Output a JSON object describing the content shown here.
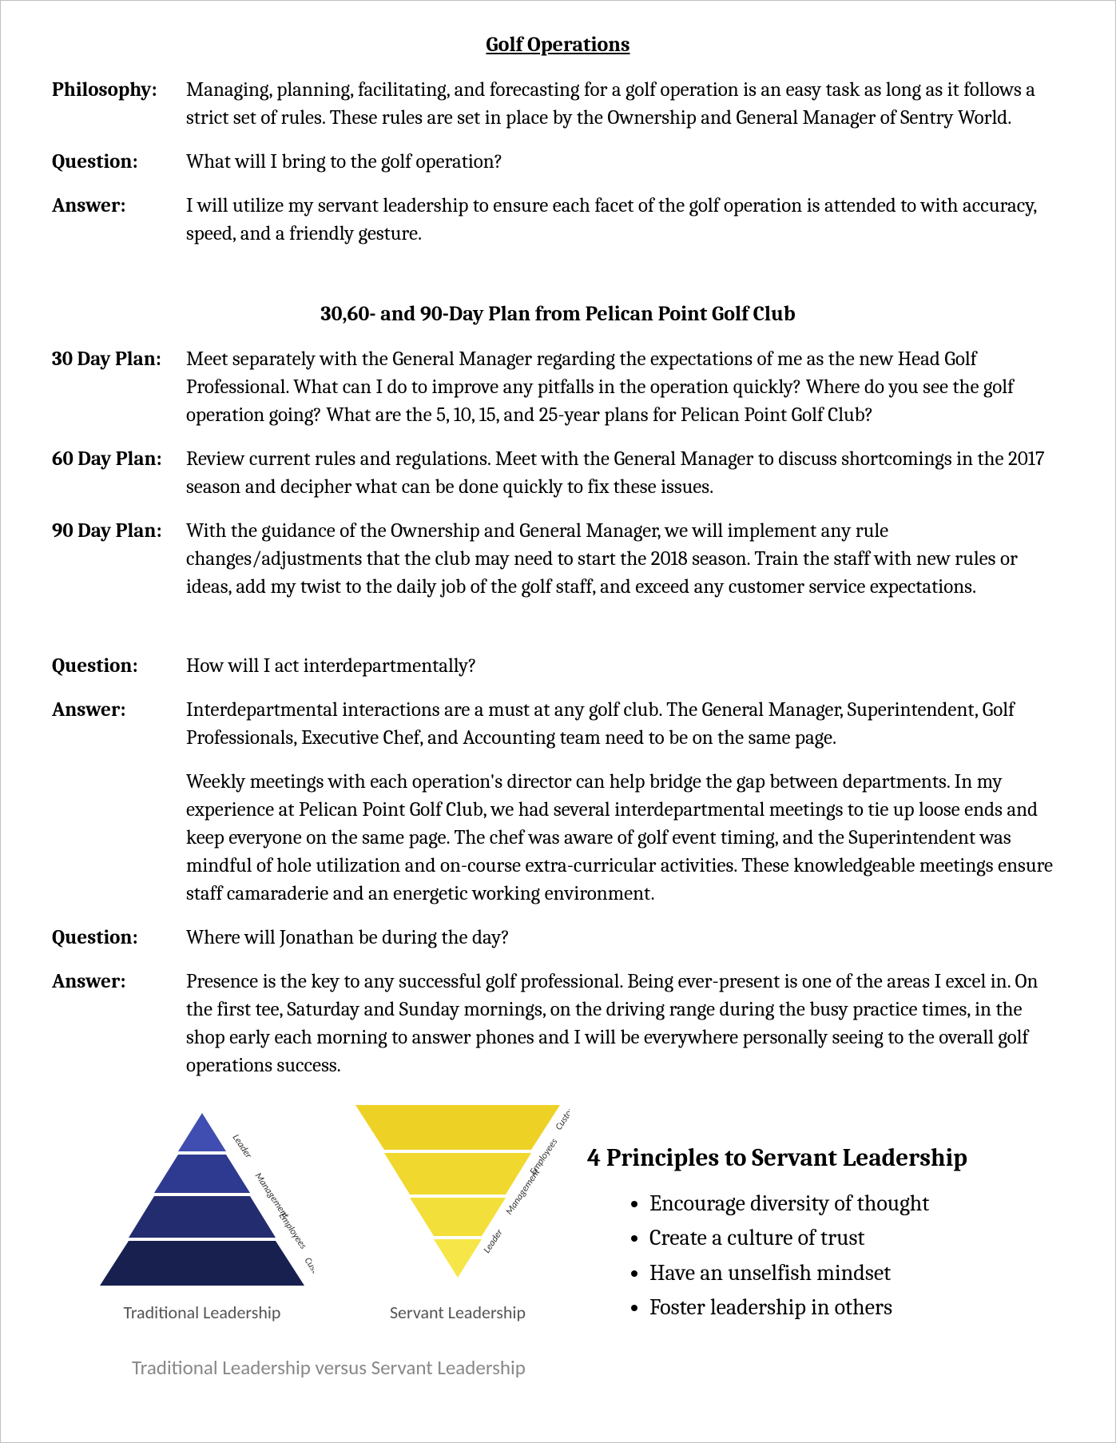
{
  "title": "Golf Operations",
  "rows_top": [
    {
      "label": "Philosophy:",
      "text": "Managing, planning, facilitating, and forecasting for a golf operation is an easy task as long as it follows a strict set of rules. These rules are set in place by the Ownership and General Manager of Sentry World."
    },
    {
      "label": "Question:",
      "text": "What will I bring to the golf operation?"
    },
    {
      "label": "Answer:",
      "text": "I will utilize my servant leadership to ensure each facet of the golf operation is attended to with accuracy, speed, and a friendly gesture."
    }
  ],
  "subheading": "30,60- and 90-Day Plan from Pelican Point Golf Club",
  "plan_rows": [
    {
      "label": "30 Day Plan:",
      "text": "Meet separately with the General Manager regarding the expectations of me as the new Head Golf Professional. What can I do to improve any pitfalls in the operation quickly? Where do you see the golf operation going? What are the 5, 10, 15, and 25-year plans for Pelican Point Golf Club?"
    },
    {
      "label": "60 Day Plan:",
      "text": "Review current rules and regulations.  Meet with the General Manager to discuss shortcomings in the 2017 season and decipher what can be done quickly to fix these issues."
    },
    {
      "label": "90 Day Plan:",
      "text": "With the guidance of the Ownership and General Manager, we will implement any rule changes/adjustments that the club may need to start the 2018 season. Train the staff with new rules or ideas, add my twist to the daily job of the golf staff, and exceed any customer service expectations."
    }
  ],
  "rows_bottom": [
    {
      "label": "Question:",
      "text": "How will I act interdepartmentally?"
    },
    {
      "label": "Answer:",
      "text": "Interdepartmental interactions are a must at any golf club. The General Manager, Superintendent, Golf Professionals, Executive Chef, and Accounting team need to be on the same page."
    },
    {
      "label": "",
      "text": "Weekly meetings with each operation's director can help bridge the gap between departments. In my experience at Pelican Point Golf Club, we had several interdepartmental meetings to tie up loose ends and keep everyone on the same page. The chef was aware of golf event timing, and the Superintendent was mindful of hole utilization and on-course extra-curricular activities. These knowledgeable meetings ensure staff camaraderie and an energetic working environment."
    },
    {
      "label": "Question:",
      "text": "Where will Jonathan be during the day?"
    },
    {
      "label": "Answer:",
      "text": "Presence is the key to any successful golf professional. Being ever-present is one of the areas I excel in. On the first tee, Saturday and Sunday mornings, on the driving range during the busy practice times, in the shop early each morning to answer phones and I will be everywhere personally seeing to the overall golf operations success."
    }
  ],
  "principles_heading": "4 Principles to Servant Leadership",
  "principles": [
    "Encourage diversity of thought",
    "Create a culture of trust",
    "Have an unselfish mindset",
    "Foster leadership in others"
  ],
  "traditional": {
    "caption": "Traditional Leadership",
    "labels": [
      "Leader",
      "Management",
      "Employees",
      "Customers"
    ],
    "band_colors": [
      "#3f4eb0",
      "#2e3a8f",
      "#232c6f",
      "#18204f"
    ],
    "text_color": "#333333"
  },
  "servant": {
    "caption": "Servant Leadership",
    "labels": [
      "Leader",
      "Management",
      "Employees",
      "Customers"
    ],
    "band_colors": [
      "#f6e647",
      "#f3df3a",
      "#f1d82f",
      "#eed125"
    ],
    "text_color": "#333333"
  },
  "bottom_caption": "Traditional Leadership versus Servant Leadership",
  "fonts": {
    "serif": "Cambria",
    "sans": "Calibri"
  },
  "colors": {
    "page_bg": "#ffffff",
    "border": "#bfbfbf",
    "caption_grey": "#888888"
  }
}
